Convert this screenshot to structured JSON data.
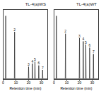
{
  "chart_data": [
    {
      "type": "line",
      "title": "TL-4(a)WS",
      "x_label": "Retention time (min)",
      "x": [
        0,
        1.8,
        2,
        2.2,
        8.8,
        9,
        9.2,
        19.8,
        20,
        20.2,
        22.8,
        23,
        23.2,
        24.8,
        25,
        25.2,
        27.8,
        28,
        28.2,
        30.8,
        31,
        31.2,
        35
      ],
      "values": [
        1,
        1,
        100,
        1,
        1,
        75,
        1,
        1,
        20,
        1,
        1,
        25,
        1,
        1,
        28,
        1,
        1,
        22,
        1,
        1,
        15,
        1,
        1
      ],
      "color": "#222222",
      "xlim": [
        0,
        35
      ],
      "xticks": [
        0,
        10,
        20,
        30
      ],
      "ylim": [
        0,
        110
      ],
      "tick_labels": "x",
      "annotations": [
        {
          "x": 9,
          "y": 75,
          "text": "2"
        },
        {
          "x": 20,
          "y": 20,
          "text": "3"
        },
        {
          "x": 23,
          "y": 25,
          "text": "4"
        },
        {
          "x": 25,
          "y": 28,
          "text": "5"
        },
        {
          "x": 28,
          "y": 22,
          "text": "6"
        },
        {
          "x": 31,
          "y": 15,
          "text": "7"
        }
      ]
    },
    {
      "type": "line",
      "title": "TL-4(a)WT",
      "x_label": "Retention time (min)",
      "x": [
        0,
        1.8,
        2,
        2.2,
        8.8,
        9,
        9.2,
        19.8,
        20,
        20.2,
        22.8,
        23,
        23.2,
        24.8,
        25,
        25.2,
        27.8,
        28,
        28.2,
        30.8,
        31,
        31.2,
        35
      ],
      "values": [
        1,
        1,
        100,
        1,
        1,
        72,
        1,
        1,
        65,
        1,
        1,
        60,
        1,
        1,
        55,
        1,
        1,
        50,
        1,
        1,
        40,
        1,
        1
      ],
      "color": "#222222",
      "xlim": [
        0,
        35
      ],
      "xticks": [
        0,
        10,
        20,
        30
      ],
      "ylim": [
        0,
        110
      ],
      "tick_labels": "x",
      "annotations": [
        {
          "x": 9,
          "y": 72,
          "text": "2"
        },
        {
          "x": 20,
          "y": 65,
          "text": "3"
        },
        {
          "x": 23,
          "y": 60,
          "text": "4"
        },
        {
          "x": 25,
          "y": 55,
          "text": "5"
        },
        {
          "x": 28,
          "y": 50,
          "text": "6"
        },
        {
          "x": 31,
          "y": 40,
          "text": "7"
        }
      ]
    }
  ]
}
